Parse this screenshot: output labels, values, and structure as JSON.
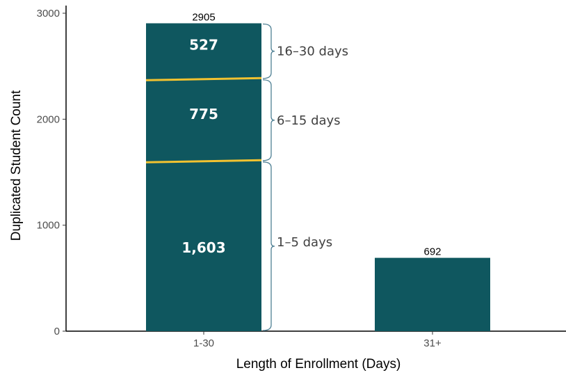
{
  "chart_data": {
    "type": "bar",
    "title": "",
    "xlabel": "Length of Enrollment (Days)",
    "ylabel": "Duplicated Student Count",
    "categories": [
      "1-30",
      "31+"
    ],
    "values": [
      2905,
      692
    ],
    "value_labels": [
      "2905",
      "692"
    ],
    "ylim": [
      0,
      3000
    ],
    "yticks": [
      "0",
      "1000",
      "2000",
      "3000"
    ],
    "grid": false,
    "legend": "none",
    "stack_breakdown": {
      "category": "1-30",
      "segments": [
        {
          "label": "1–5 days",
          "value": 1603,
          "display": "1,603"
        },
        {
          "label": "6–15 days",
          "value": 775,
          "display": "775"
        },
        {
          "label": "16–30 days",
          "value": 527,
          "display": "527"
        }
      ]
    },
    "colors": {
      "bar": "#0f575f",
      "divider": "#f2c230",
      "bracket": "#4e7f93",
      "axis": "#000000"
    }
  }
}
